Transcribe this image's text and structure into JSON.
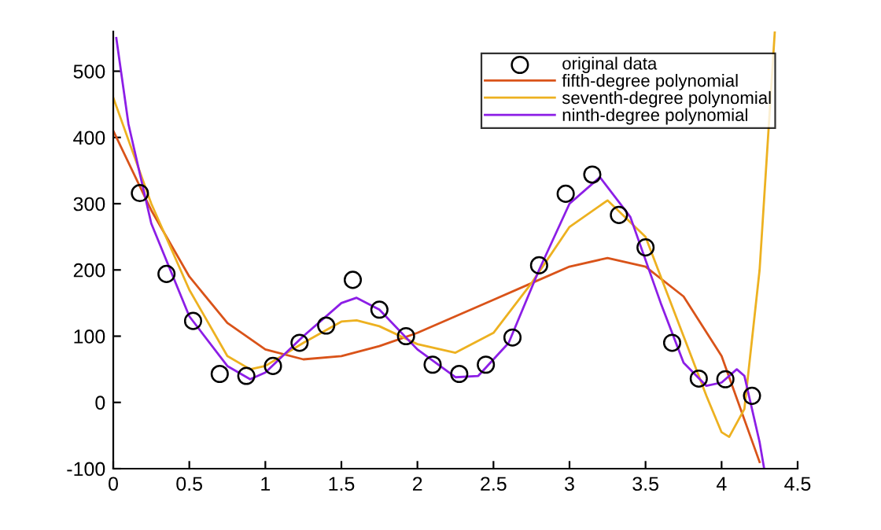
{
  "chart_data": {
    "type": "line",
    "xlim": [
      0,
      4.5
    ],
    "ylim": [
      -100,
      560
    ],
    "xticks": [
      0,
      0.5,
      1,
      1.5,
      2,
      2.5,
      3,
      3.5,
      4,
      4.5
    ],
    "yticks": [
      -100,
      0,
      100,
      200,
      300,
      400,
      500
    ],
    "grid": false,
    "legend": "top right",
    "series": [
      {
        "name": "original data",
        "type": "scatter",
        "marker": "circle",
        "color": "#000000",
        "x": [
          0.175,
          0.35,
          0.525,
          0.7,
          0.875,
          1.05,
          1.225,
          1.4,
          1.575,
          1.75,
          1.925,
          2.1,
          2.275,
          2.45,
          2.625,
          2.8,
          2.975,
          3.15,
          3.325,
          3.5,
          3.675,
          3.85,
          4.025,
          4.2
        ],
        "values": [
          316,
          194,
          123,
          43,
          40,
          55,
          90,
          116,
          185,
          140,
          100,
          57,
          43,
          57,
          98,
          207,
          315,
          344,
          283,
          234,
          90,
          36,
          35,
          10
        ]
      },
      {
        "name": "fifth-degree polynomial",
        "color": "#d95319",
        "x": [
          0,
          0.25,
          0.5,
          0.75,
          1.0,
          1.25,
          1.5,
          1.75,
          2.0,
          2.25,
          2.5,
          2.75,
          3.0,
          3.25,
          3.5,
          3.75,
          4.0,
          4.25
        ],
        "values": [
          410,
          290,
          190,
          120,
          80,
          65,
          70,
          85,
          105,
          130,
          155,
          180,
          205,
          218,
          205,
          160,
          70,
          -90
        ]
      },
      {
        "name": "seventh-degree polynomial",
        "color": "#edb120",
        "x": [
          0,
          0.25,
          0.5,
          0.75,
          0.9,
          1.0,
          1.25,
          1.5,
          1.6,
          1.75,
          2.0,
          2.25,
          2.5,
          2.75,
          3.0,
          3.25,
          3.5,
          3.75,
          3.9,
          4.0,
          4.05,
          4.15,
          4.25,
          4.35
        ],
        "values": [
          460,
          300,
          170,
          70,
          50,
          55,
          90,
          122,
          124,
          115,
          88,
          75,
          105,
          180,
          265,
          305,
          250,
          100,
          10,
          -45,
          -52,
          -10,
          200,
          560
        ]
      },
      {
        "name": "ninth-degree polynomial",
        "color": "#8c1ee6",
        "x": [
          0.02,
          0.1,
          0.25,
          0.5,
          0.75,
          0.9,
          1.0,
          1.25,
          1.5,
          1.6,
          1.75,
          2.0,
          2.25,
          2.4,
          2.6,
          2.8,
          3.0,
          3.2,
          3.4,
          3.6,
          3.75,
          3.9,
          4.0,
          4.1,
          4.15,
          4.25,
          4.28
        ],
        "values": [
          550,
          420,
          270,
          130,
          55,
          35,
          45,
          100,
          150,
          158,
          140,
          80,
          38,
          40,
          90,
          200,
          300,
          340,
          280,
          150,
          60,
          25,
          30,
          50,
          40,
          -60,
          -100
        ]
      }
    ]
  }
}
